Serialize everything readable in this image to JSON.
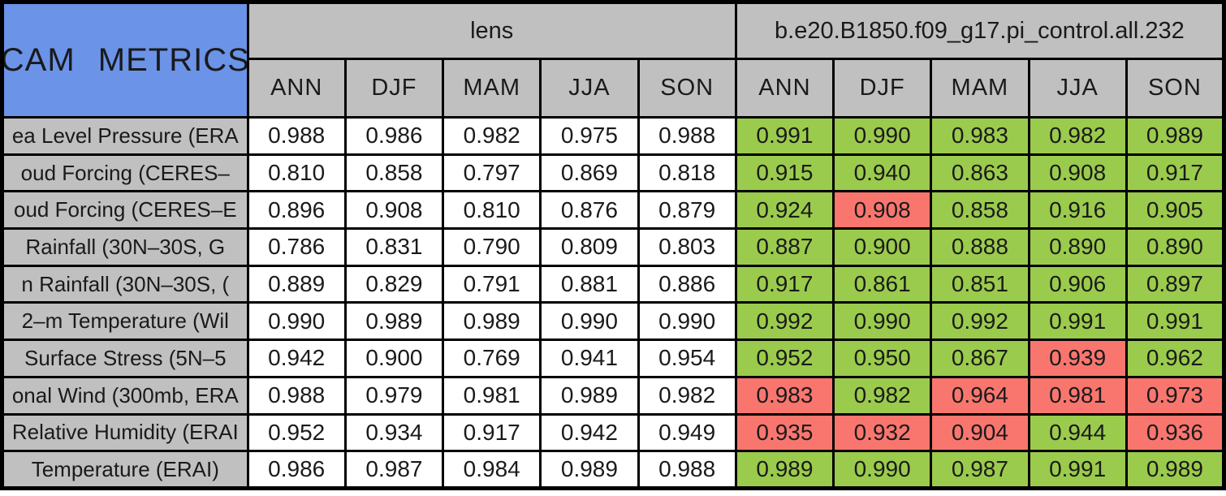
{
  "title": "CAM METRICS",
  "colors": {
    "title_cell_blue": "#6b93e8",
    "header_gray": "#c0c0c0",
    "better_green": "#9bcb4c",
    "worse_red": "#f9766f",
    "neutral_white": "#ffffff",
    "border_black": "#000000"
  },
  "groups": [
    {
      "label": "lens",
      "seasons": [
        "ANN",
        "DJF",
        "MAM",
        "JJA",
        "SON"
      ]
    },
    {
      "label": "b.e20.B1850.f09_g17.pi_control.all.232",
      "seasons": [
        "ANN",
        "DJF",
        "MAM",
        "JJA",
        "SON"
      ]
    }
  ],
  "rows": [
    {
      "label": "ea Level Pressure (ERA",
      "lens": [
        "0.988",
        "0.986",
        "0.982",
        "0.975",
        "0.988"
      ],
      "control": [
        "0.991",
        "0.990",
        "0.983",
        "0.982",
        "0.989"
      ],
      "status": [
        "better",
        "better",
        "better",
        "better",
        "better"
      ]
    },
    {
      "label": "oud Forcing (CERES–",
      "lens": [
        "0.810",
        "0.858",
        "0.797",
        "0.869",
        "0.818"
      ],
      "control": [
        "0.915",
        "0.940",
        "0.863",
        "0.908",
        "0.917"
      ],
      "status": [
        "better",
        "better",
        "better",
        "better",
        "better"
      ]
    },
    {
      "label": "oud Forcing (CERES–E",
      "lens": [
        "0.896",
        "0.908",
        "0.810",
        "0.876",
        "0.879"
      ],
      "control": [
        "0.924",
        "0.908",
        "0.858",
        "0.916",
        "0.905"
      ],
      "status": [
        "better",
        "worse",
        "better",
        "better",
        "better"
      ]
    },
    {
      "label": "Rainfall (30N–30S, G",
      "lens": [
        "0.786",
        "0.831",
        "0.790",
        "0.809",
        "0.803"
      ],
      "control": [
        "0.887",
        "0.900",
        "0.888",
        "0.890",
        "0.890"
      ],
      "status": [
        "better",
        "better",
        "better",
        "better",
        "better"
      ]
    },
    {
      "label": "n Rainfall (30N–30S, (",
      "lens": [
        "0.889",
        "0.829",
        "0.791",
        "0.881",
        "0.886"
      ],
      "control": [
        "0.917",
        "0.861",
        "0.851",
        "0.906",
        "0.897"
      ],
      "status": [
        "better",
        "better",
        "better",
        "better",
        "better"
      ]
    },
    {
      "label": "2–m Temperature (Wil",
      "lens": [
        "0.990",
        "0.989",
        "0.989",
        "0.990",
        "0.990"
      ],
      "control": [
        "0.992",
        "0.990",
        "0.992",
        "0.991",
        "0.991"
      ],
      "status": [
        "better",
        "better",
        "better",
        "better",
        "better"
      ]
    },
    {
      "label": "Surface Stress (5N–5",
      "lens": [
        "0.942",
        "0.900",
        "0.769",
        "0.941",
        "0.954"
      ],
      "control": [
        "0.952",
        "0.950",
        "0.867",
        "0.939",
        "0.962"
      ],
      "status": [
        "better",
        "better",
        "better",
        "worse",
        "better"
      ]
    },
    {
      "label": "onal Wind (300mb, ERA",
      "lens": [
        "0.988",
        "0.979",
        "0.981",
        "0.989",
        "0.982"
      ],
      "control": [
        "0.983",
        "0.982",
        "0.964",
        "0.981",
        "0.973"
      ],
      "status": [
        "worse",
        "better",
        "worse",
        "worse",
        "worse"
      ]
    },
    {
      "label": "Relative Humidity (ERAI",
      "lens": [
        "0.952",
        "0.934",
        "0.917",
        "0.942",
        "0.949"
      ],
      "control": [
        "0.935",
        "0.932",
        "0.904",
        "0.944",
        "0.936"
      ],
      "status": [
        "worse",
        "worse",
        "worse",
        "better",
        "worse"
      ]
    },
    {
      "label": "Temperature (ERAI)",
      "lens": [
        "0.986",
        "0.987",
        "0.984",
        "0.989",
        "0.988"
      ],
      "control": [
        "0.989",
        "0.990",
        "0.987",
        "0.991",
        "0.989"
      ],
      "status": [
        "better",
        "better",
        "better",
        "better",
        "better"
      ]
    }
  ],
  "chart_data": {
    "type": "table",
    "title": "CAM METRICS",
    "column_groups": [
      {
        "name": "lens",
        "columns": [
          "ANN",
          "DJF",
          "MAM",
          "JJA",
          "SON"
        ]
      },
      {
        "name": "b.e20.B1850.f09_g17.pi_control.all.232",
        "columns": [
          "ANN",
          "DJF",
          "MAM",
          "JJA",
          "SON"
        ]
      }
    ],
    "row_labels": [
      "ea Level Pressure (ERA",
      "oud Forcing (CERES–",
      "oud Forcing (CERES–E",
      "Rainfall (30N–30S, G",
      "n Rainfall (30N–30S, (",
      "2–m Temperature (Wil",
      "Surface Stress (5N–5",
      "onal Wind (300mb, ERA",
      "Relative Humidity (ERAI",
      "Temperature (ERAI)"
    ],
    "series": [
      {
        "name": "lens",
        "values": [
          [
            0.988,
            0.986,
            0.982,
            0.975,
            0.988
          ],
          [
            0.81,
            0.858,
            0.797,
            0.869,
            0.818
          ],
          [
            0.896,
            0.908,
            0.81,
            0.876,
            0.879
          ],
          [
            0.786,
            0.831,
            0.79,
            0.809,
            0.803
          ],
          [
            0.889,
            0.829,
            0.791,
            0.881,
            0.886
          ],
          [
            0.99,
            0.989,
            0.989,
            0.99,
            0.99
          ],
          [
            0.942,
            0.9,
            0.769,
            0.941,
            0.954
          ],
          [
            0.988,
            0.979,
            0.981,
            0.989,
            0.982
          ],
          [
            0.952,
            0.934,
            0.917,
            0.942,
            0.949
          ],
          [
            0.986,
            0.987,
            0.984,
            0.989,
            0.988
          ]
        ]
      },
      {
        "name": "b.e20.B1850.f09_g17.pi_control.all.232",
        "values": [
          [
            0.991,
            0.99,
            0.983,
            0.982,
            0.989
          ],
          [
            0.915,
            0.94,
            0.863,
            0.908,
            0.917
          ],
          [
            0.924,
            0.908,
            0.858,
            0.916,
            0.905
          ],
          [
            0.887,
            0.9,
            0.888,
            0.89,
            0.89
          ],
          [
            0.917,
            0.861,
            0.851,
            0.906,
            0.897
          ],
          [
            0.992,
            0.99,
            0.992,
            0.991,
            0.991
          ],
          [
            0.952,
            0.95,
            0.867,
            0.939,
            0.962
          ],
          [
            0.983,
            0.982,
            0.964,
            0.981,
            0.973
          ],
          [
            0.935,
            0.932,
            0.904,
            0.944,
            0.936
          ],
          [
            0.989,
            0.99,
            0.987,
            0.991,
            0.989
          ]
        ],
        "cell_colors": [
          [
            "green",
            "green",
            "green",
            "green",
            "green"
          ],
          [
            "green",
            "green",
            "green",
            "green",
            "green"
          ],
          [
            "green",
            "red",
            "green",
            "green",
            "green"
          ],
          [
            "green",
            "green",
            "green",
            "green",
            "green"
          ],
          [
            "green",
            "green",
            "green",
            "green",
            "green"
          ],
          [
            "green",
            "green",
            "green",
            "green",
            "green"
          ],
          [
            "green",
            "green",
            "green",
            "red",
            "green"
          ],
          [
            "red",
            "green",
            "red",
            "red",
            "red"
          ],
          [
            "red",
            "red",
            "red",
            "green",
            "red"
          ],
          [
            "green",
            "green",
            "green",
            "green",
            "green"
          ]
        ]
      }
    ],
    "legend_note_green": "#9bcb4c",
    "legend_note_red": "#f9766f",
    "grid": true,
    "value_range": [
      0,
      1
    ]
  }
}
